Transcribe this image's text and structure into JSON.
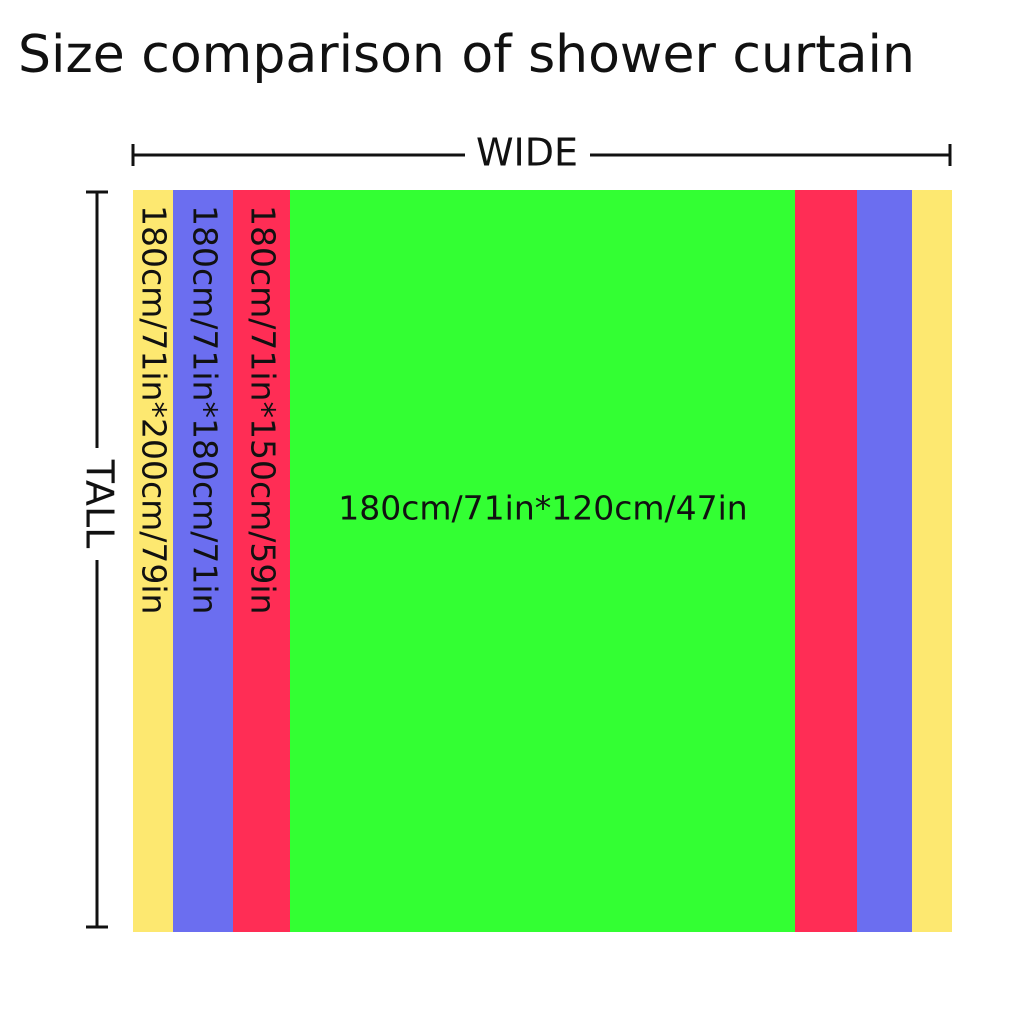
{
  "header": {
    "title": "Size comparison of shower curtain"
  },
  "dimensions": {
    "wide": "WIDE",
    "tall": "TALL"
  },
  "sizes": [
    {
      "label": "180cm/71in*200cm/79in"
    },
    {
      "label": "180cm/71in*180cm/71in"
    },
    {
      "label": "180cm/71in*150cm/59in"
    },
    {
      "label": "180cm/71in*120cm/47in"
    }
  ]
}
